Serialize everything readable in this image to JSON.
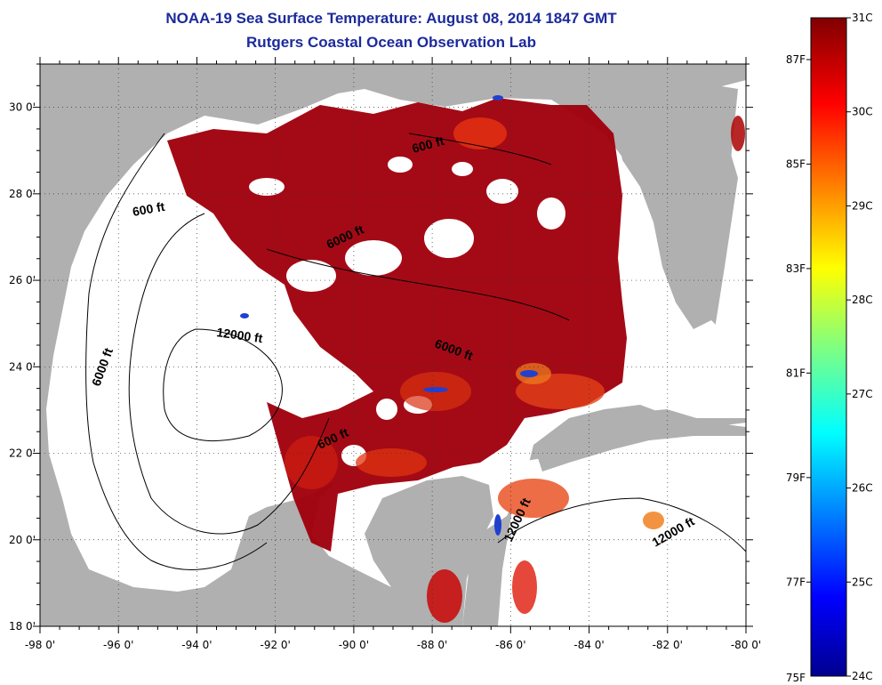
{
  "title": {
    "line1": "NOAA-19 Sea Surface Temperature:  August 08, 2014 1847 GMT",
    "line2": "Rutgers Coastal Ocean Observation Lab"
  },
  "map": {
    "lon_ticks": [
      "-98 0'",
      "-96 0'",
      "-94 0'",
      "-92 0'",
      "-90 0'",
      "-88 0'",
      "-86 0'",
      "-84 0'",
      "-82 0'",
      "-80 0'"
    ],
    "lat_ticks": [
      "30 0'",
      "28 0'",
      "26 0'",
      "24 0'",
      "22 0'",
      "20 0'",
      "18 0'"
    ],
    "lon_range": [
      -98,
      -80
    ],
    "lat_range": [
      18,
      31
    ],
    "grid": "dotted",
    "colors": {
      "land": "#b0b0b0",
      "no_data": "#ffffff",
      "warm_sst": "#a0000c"
    },
    "contour_labels": [
      "600 ft",
      "600 ft",
      "6000 ft",
      "6000 ft",
      "12000 ft",
      "6000 ft",
      "600 ft",
      "12000 ft",
      "12000 ft"
    ]
  },
  "colorbar": {
    "celsius_labels": [
      "31C",
      "30C",
      "29C",
      "28C",
      "27C",
      "26C",
      "25C",
      "24C"
    ],
    "fahrenheit_labels": [
      "87F",
      "85F",
      "83F",
      "81F",
      "79F",
      "77F",
      "75F"
    ],
    "range_c": [
      24,
      31
    ],
    "colormap": "jet"
  }
}
